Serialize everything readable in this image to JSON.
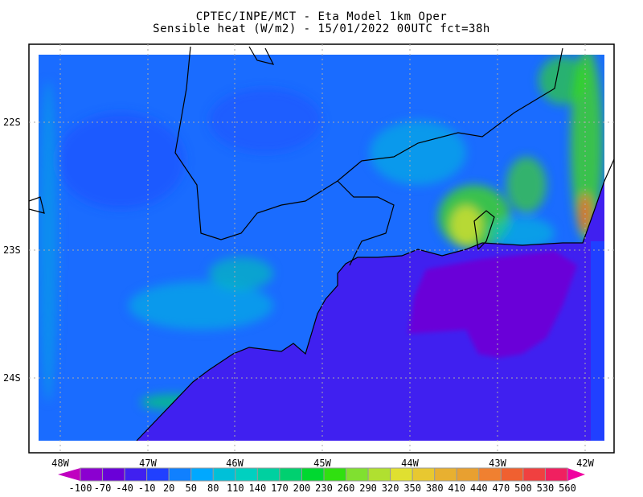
{
  "title": {
    "line1": "CPTEC/INPE/MCT -  Eta Model 1km Oper",
    "line2": "Sensible heat (W/m2) - 15/01/2022 00UTC fct=38h"
  },
  "map": {
    "variable": "Sensible heat",
    "units": "W/m2",
    "lat_labels": [
      "22S",
      "23S",
      "24S"
    ],
    "lon_labels": [
      "48W",
      "47W",
      "46W",
      "45W",
      "44W",
      "43W",
      "42W"
    ],
    "grid": "dotted",
    "colors": {
      "land": "#1a6cff",
      "ocean": "#4020f0",
      "ocean_dark": "#6a00d8",
      "coastline": "#000000"
    }
  },
  "colorbar": {
    "labels": [
      "-100",
      "-70",
      "-40",
      "-10",
      "20",
      "50",
      "80",
      "110",
      "140",
      "170",
      "200",
      "230",
      "260",
      "290",
      "320",
      "350",
      "380",
      "410",
      "440",
      "470",
      "500",
      "530",
      "560"
    ],
    "colors": [
      "#8b00d0",
      "#6a00d8",
      "#4020f0",
      "#2040ff",
      "#1080ff",
      "#00a8ff",
      "#00c0d8",
      "#00d0c0",
      "#00d0a0",
      "#00d070",
      "#00d830",
      "#30e010",
      "#80e030",
      "#b0e030",
      "#e0e030",
      "#e8c830",
      "#e8b030",
      "#e8a030",
      "#f08030",
      "#f06030",
      "#f04040",
      "#f02060"
    ],
    "under_color": "#c000c0",
    "over_color": "#f000a0"
  }
}
